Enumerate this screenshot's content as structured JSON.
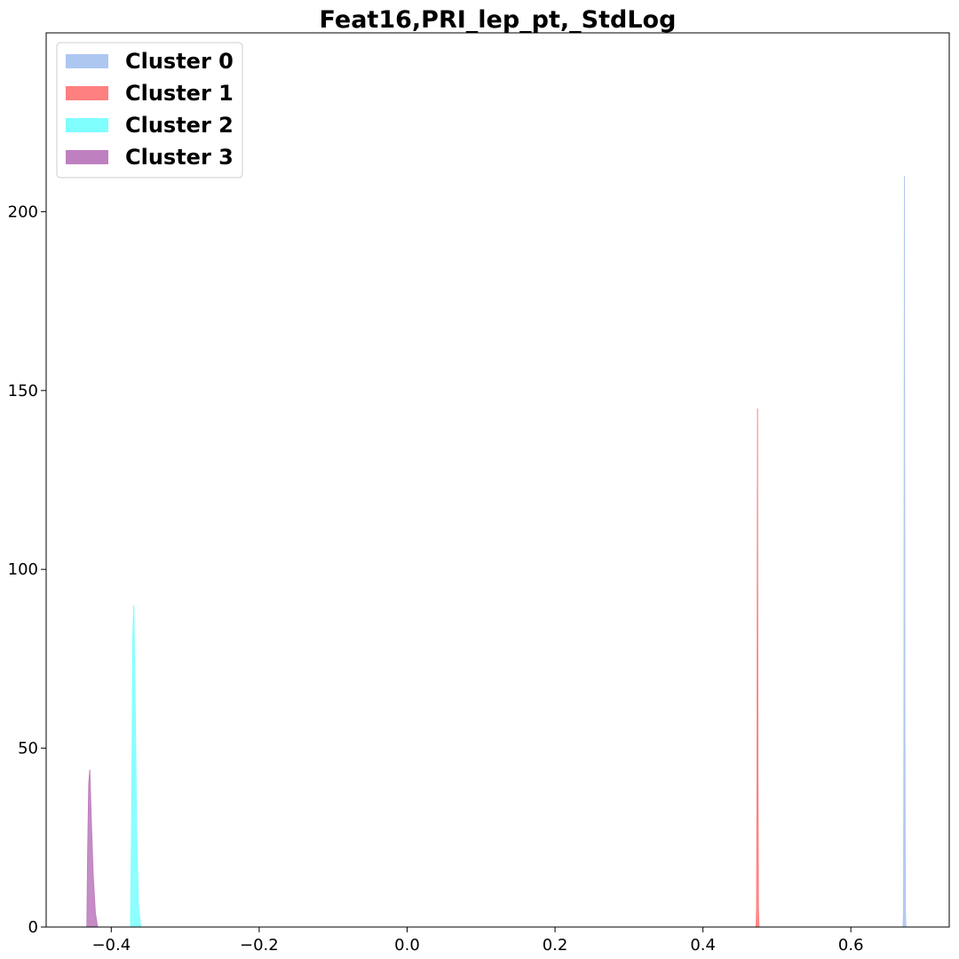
{
  "chart_data": {
    "type": "area",
    "title": "Feat16,PRI_lep_pt,_StdLog",
    "xlabel": "",
    "ylabel": "",
    "xlim": [
      -0.488,
      0.733
    ],
    "ylim": [
      0,
      250
    ],
    "xticks": [
      {
        "value": -0.4,
        "label": "−0.4"
      },
      {
        "value": -0.2,
        "label": "−0.2"
      },
      {
        "value": 0.0,
        "label": "0.0"
      },
      {
        "value": 0.2,
        "label": "0.2"
      },
      {
        "value": 0.4,
        "label": "0.4"
      },
      {
        "value": 0.6,
        "label": "0.6"
      }
    ],
    "yticks": [
      {
        "value": 0,
        "label": "0"
      },
      {
        "value": 50,
        "label": "50"
      },
      {
        "value": 100,
        "label": "100"
      },
      {
        "value": 150,
        "label": "150"
      },
      {
        "value": 200,
        "label": "200"
      }
    ],
    "grid": false,
    "legend_position": "top-left",
    "series": [
      {
        "name": "Cluster 0",
        "color": "#aec7f1",
        "x": [
          0.6705,
          0.6712,
          0.6718,
          0.6724,
          0.673,
          0.6737,
          0.6744
        ],
        "y": [
          0,
          5,
          60,
          210,
          60,
          5,
          0
        ]
      },
      {
        "name": "Cluster 1",
        "color": "#ff8080",
        "x": [
          0.4718,
          0.4725,
          0.4731,
          0.4738,
          0.4744,
          0.4751,
          0.4758
        ],
        "y": [
          0,
          5,
          45,
          145,
          45,
          5,
          0
        ]
      },
      {
        "name": "Cluster 2",
        "color": "#80ffff",
        "x": [
          -0.374,
          -0.3725,
          -0.371,
          -0.3695,
          -0.3675,
          -0.3655,
          -0.363,
          -0.36
        ],
        "y": [
          0,
          30,
          80,
          90,
          60,
          25,
          5,
          0
        ]
      },
      {
        "name": "Cluster 3",
        "color": "#bf80bf",
        "x": [
          -0.433,
          -0.432,
          -0.4305,
          -0.429,
          -0.427,
          -0.4245,
          -0.4215,
          -0.4185
        ],
        "y": [
          0,
          20,
          40,
          44,
          30,
          15,
          4,
          0
        ]
      }
    ]
  }
}
